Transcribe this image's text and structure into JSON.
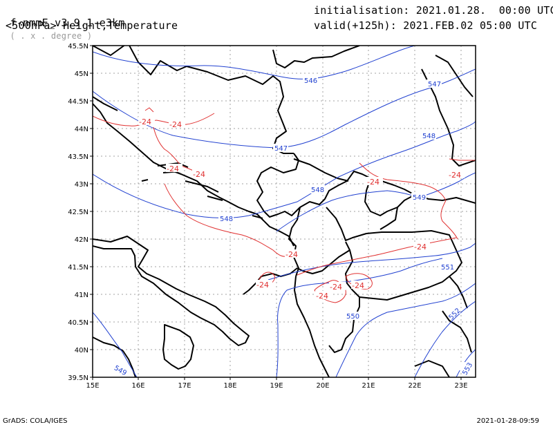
{
  "header": {
    "model": "f-nmmE_v3.9.1-e3km",
    "units": "( . x . degree )",
    "level_desc": "<500hPa> Height,Temperature",
    "init": "initialisation: 2021.01.28.  00:00 UTC",
    "valid": "valid(+125h): 2021.FEB.02 05:00 UTC"
  },
  "footer": {
    "left": "GrADS: COLA/IGES",
    "right": "2021-01-28-09:59"
  },
  "map": {
    "lon_ticks": [
      "15E",
      "16E",
      "17E",
      "18E",
      "19E",
      "20E",
      "21E",
      "22E",
      "23E"
    ],
    "lat_ticks": [
      "45.5N",
      "45N",
      "44.5N",
      "44N",
      "43.5N",
      "43N",
      "42.5N",
      "42N",
      "41.5N",
      "41N",
      "40.5N",
      "40N",
      "39.5N"
    ],
    "height_labels": [
      "546",
      "547",
      "547",
      "548",
      "548",
      "548",
      "549",
      "550",
      "551",
      "552",
      "553",
      "549"
    ],
    "temp_labels": [
      "-24",
      "-24",
      "-24",
      "-24",
      "-24",
      "-24",
      "-24",
      "-24",
      "-24",
      "-24",
      "-24",
      "-24"
    ],
    "colors": {
      "height": "#2040d0",
      "temperature": "#e03030",
      "border": "#000000",
      "grid": "#a0a0a0"
    }
  }
}
